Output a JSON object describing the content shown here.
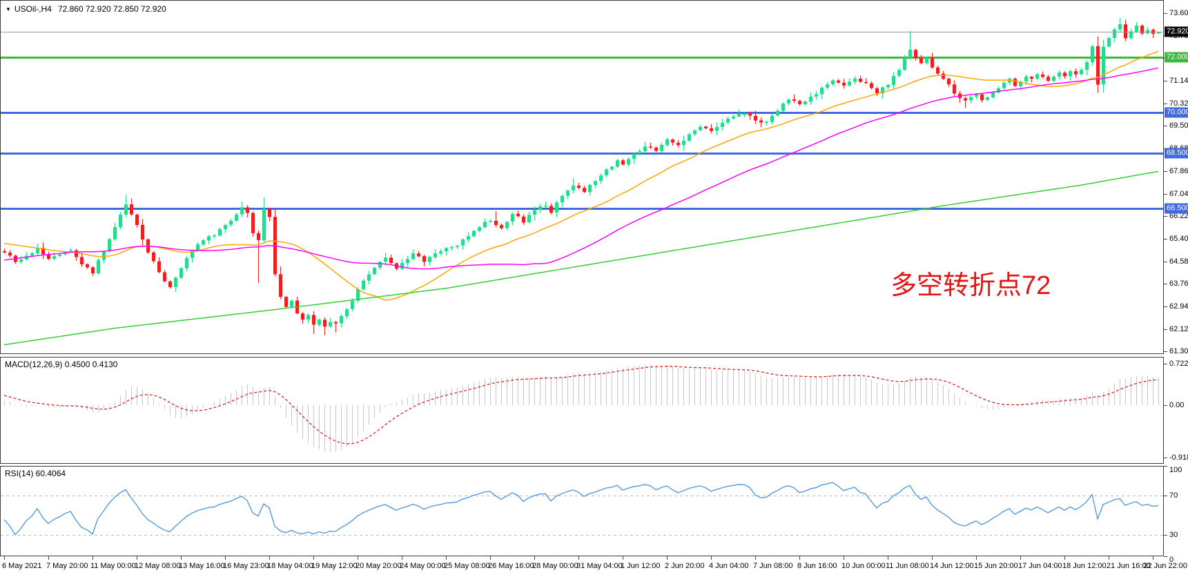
{
  "header": {
    "dropdown_icon": "▼",
    "symbol": "USOil-,H4",
    "ohlc": "72.860 72.920 72.850 72.920"
  },
  "colors": {
    "bull": "#2bd98c",
    "bear": "#f01e1e",
    "wick_bull": "#2bd98c",
    "wick_bear": "#f01e1e",
    "hline_blue": "#4169e1",
    "hline_green": "#3cb93c",
    "ma_fast": "#ffa500",
    "ma_mid": "#ff00ff",
    "ma_slow": "#33cc33",
    "current_line": "#9a9a9a",
    "current_badge_bg": "#0a0a0a",
    "macd_hist": "#c6c6c6",
    "macd_signal": "#dd2222",
    "rsi_line": "#4793e0",
    "level_dash": "#bdbdbd",
    "border": "#3c3c3c",
    "text": "#000000",
    "annotation_red": "#e41414",
    "background": "#ffffff"
  },
  "chart_data": [
    {
      "id": "price",
      "type": "candlestick",
      "symbol": "USOil-",
      "timeframe": "H4",
      "num_bars": 210,
      "bars_per_x_tick": 8,
      "y_range": [
        61.212,
        74.076
      ],
      "y_ticks": [
        {
          "label": "73.600",
          "price": 73.6
        },
        {
          "label": "72.780",
          "price": 72.78
        },
        {
          "label": "71.960",
          "price": 71.96
        },
        {
          "label": "71.140",
          "price": 71.14
        },
        {
          "label": "70.320",
          "price": 70.32
        },
        {
          "label": "69.500",
          "price": 69.5
        },
        {
          "label": "68.680",
          "price": 68.68
        },
        {
          "label": "67.860",
          "price": 67.86
        },
        {
          "label": "67.040",
          "price": 67.04
        },
        {
          "label": "66.220",
          "price": 66.22
        },
        {
          "label": "65.400",
          "price": 65.4
        },
        {
          "label": "64.580",
          "price": 64.58
        },
        {
          "label": "63.760",
          "price": 63.76
        },
        {
          "label": "62.940",
          "price": 62.94
        },
        {
          "label": "62.120",
          "price": 62.12
        },
        {
          "label": "61.300",
          "price": 61.3
        }
      ],
      "x_ticks": [
        "6 May 2021",
        "7 May 20:00",
        "11 May 00:00",
        "12 May 08:00",
        "13 May 16:00",
        "16 May 23:00",
        "18 May 04:00",
        "19 May 12:00",
        "20 May 20:00",
        "24 May 00:00",
        "25 May 08:00",
        "26 May 16:00",
        "28 May 00:00",
        "31 May 04:00",
        "1 Jun 12:00",
        "2 Jun 20:00",
        "4 Jun 04:00",
        "7 Jun 08:00",
        "8 Jun 16:00",
        "10 Jun 00:00",
        "11 Jun 08:00",
        "14 Jun 12:00",
        "15 Jun 20:00",
        "17 Jun 04:00",
        "18 Jun 12:00",
        "21 Jun 16:00",
        "22 Jun 22:00"
      ],
      "hlines": [
        {
          "label": "72.000",
          "price": 72.0,
          "color_key": "hline_green"
        },
        {
          "label": "70.000",
          "price": 70.0,
          "color_key": "hline_blue"
        },
        {
          "label": "68.500",
          "price": 68.5,
          "color_key": "hline_blue"
        },
        {
          "label": "66.500",
          "price": 66.5,
          "color_key": "hline_blue"
        }
      ],
      "current_price": {
        "label": "72.920",
        "value": 72.92
      },
      "last_bar": {
        "open": 72.86,
        "high": 72.92,
        "low": 72.85,
        "close": 72.92
      },
      "close_path": [
        [
          0,
          64.9
        ],
        [
          2,
          64.55
        ],
        [
          4,
          64.8
        ],
        [
          6,
          65.05
        ],
        [
          8,
          64.65
        ],
        [
          10,
          64.85
        ],
        [
          12,
          65.0
        ],
        [
          14,
          64.45
        ],
        [
          16,
          64.15
        ],
        [
          19,
          65.4
        ],
        [
          20,
          65.8
        ],
        [
          22,
          66.65
        ],
        [
          23,
          66.3
        ],
        [
          24,
          65.9
        ],
        [
          26,
          64.9
        ],
        [
          28,
          64.2
        ],
        [
          30,
          63.65
        ],
        [
          31,
          64.0
        ],
        [
          32,
          64.35
        ],
        [
          34,
          65.0
        ],
        [
          36,
          65.35
        ],
        [
          38,
          65.5
        ],
        [
          40,
          65.9
        ],
        [
          42,
          66.3
        ],
        [
          43,
          66.55
        ],
        [
          44,
          66.35
        ],
        [
          45,
          65.6
        ],
        [
          46,
          65.35
        ],
        [
          47,
          66.5
        ],
        [
          48,
          66.2
        ],
        [
          49,
          64.1
        ],
        [
          50,
          63.3
        ],
        [
          51,
          62.9
        ],
        [
          52,
          63.15
        ],
        [
          53,
          62.7
        ],
        [
          54,
          62.45
        ],
        [
          55,
          62.65
        ],
        [
          56,
          62.3
        ],
        [
          57,
          62.45
        ],
        [
          58,
          62.2
        ],
        [
          59,
          62.4
        ],
        [
          60,
          62.3
        ],
        [
          61,
          62.6
        ],
        [
          62,
          62.85
        ],
        [
          64,
          63.55
        ],
        [
          66,
          64.1
        ],
        [
          68,
          64.55
        ],
        [
          69,
          64.7
        ],
        [
          71,
          64.3
        ],
        [
          73,
          64.65
        ],
        [
          74,
          64.85
        ],
        [
          76,
          64.55
        ],
        [
          78,
          64.85
        ],
        [
          80,
          65.05
        ],
        [
          82,
          65.15
        ],
        [
          84,
          65.5
        ],
        [
          86,
          65.85
        ],
        [
          88,
          66.05
        ],
        [
          90,
          65.8
        ],
        [
          92,
          66.3
        ],
        [
          94,
          66.0
        ],
        [
          96,
          66.45
        ],
        [
          98,
          66.6
        ],
        [
          99,
          66.35
        ],
        [
          101,
          66.95
        ],
        [
          103,
          67.35
        ],
        [
          105,
          67.1
        ],
        [
          107,
          67.5
        ],
        [
          109,
          67.9
        ],
        [
          111,
          68.25
        ],
        [
          112,
          68.1
        ],
        [
          114,
          68.5
        ],
        [
          116,
          68.75
        ],
        [
          118,
          68.6
        ],
        [
          120,
          69.0
        ],
        [
          122,
          68.8
        ],
        [
          124,
          69.2
        ],
        [
          126,
          69.45
        ],
        [
          128,
          69.3
        ],
        [
          130,
          69.6
        ],
        [
          132,
          69.85
        ],
        [
          134,
          69.95
        ],
        [
          136,
          69.7
        ],
        [
          138,
          69.65
        ],
        [
          140,
          70.05
        ],
        [
          142,
          70.45
        ],
        [
          144,
          70.3
        ],
        [
          146,
          70.55
        ],
        [
          148,
          70.9
        ],
        [
          150,
          71.15
        ],
        [
          152,
          70.95
        ],
        [
          154,
          71.2
        ],
        [
          156,
          71.05
        ],
        [
          158,
          70.7
        ],
        [
          160,
          71.0
        ],
        [
          162,
          71.55
        ],
        [
          163,
          71.95
        ],
        [
          164,
          72.25
        ],
        [
          165,
          72.0
        ],
        [
          166,
          71.8
        ],
        [
          167,
          71.95
        ],
        [
          168,
          71.6
        ],
        [
          170,
          71.2
        ],
        [
          172,
          70.7
        ],
        [
          174,
          70.4
        ],
        [
          175,
          70.55
        ],
        [
          176,
          70.65
        ],
        [
          177,
          70.45
        ],
        [
          178,
          70.55
        ],
        [
          179,
          70.7
        ],
        [
          180,
          70.85
        ],
        [
          181,
          71.05
        ],
        [
          182,
          71.2
        ],
        [
          183,
          70.95
        ],
        [
          184,
          71.1
        ],
        [
          185,
          71.3
        ],
        [
          186,
          71.2
        ],
        [
          187,
          71.4
        ],
        [
          188,
          71.3
        ],
        [
          189,
          71.15
        ],
        [
          190,
          71.3
        ],
        [
          191,
          71.45
        ],
        [
          192,
          71.3
        ],
        [
          193,
          71.5
        ],
        [
          194,
          71.4
        ],
        [
          195,
          71.55
        ],
        [
          196,
          71.8
        ],
        [
          197,
          72.4
        ],
        [
          198,
          71.0
        ],
        [
          199,
          72.4
        ],
        [
          200,
          72.7
        ],
        [
          201,
          73.0
        ],
        [
          202,
          73.2
        ],
        [
          203,
          72.7
        ],
        [
          204,
          72.95
        ],
        [
          205,
          73.15
        ],
        [
          206,
          72.85
        ],
        [
          207,
          73.0
        ],
        [
          208,
          72.86
        ],
        [
          209,
          72.92
        ]
      ],
      "spikes": [
        {
          "bar": 22,
          "high": 67.0
        },
        {
          "bar": 43,
          "high": 66.75
        },
        {
          "bar": 46,
          "low": 63.8
        },
        {
          "bar": 47,
          "high": 66.9
        },
        {
          "bar": 56,
          "low": 61.95
        },
        {
          "bar": 58,
          "low": 61.9
        },
        {
          "bar": 60,
          "low": 62.0
        },
        {
          "bar": 89,
          "high": 66.4
        },
        {
          "bar": 103,
          "high": 67.6
        },
        {
          "bar": 134,
          "high": 70.0
        },
        {
          "bar": 164,
          "high": 72.95
        },
        {
          "bar": 174,
          "low": 70.15
        },
        {
          "bar": 198,
          "high": 72.75
        },
        {
          "bar": 198,
          "low": 70.7
        },
        {
          "bar": 202,
          "high": 73.42
        }
      ],
      "pre_history_path": [
        [
          -50,
          63.2
        ],
        [
          -15,
          65.5
        ],
        [
          -5,
          65.1
        ],
        [
          -1,
          64.95
        ]
      ],
      "moving_averages": [
        {
          "name": "ma-fast",
          "style": "sma",
          "period": 21,
          "color_key": "ma_fast"
        },
        {
          "name": "ma-mid",
          "style": "sma",
          "period": 50,
          "color_key": "ma_mid"
        },
        {
          "name": "ma-slow",
          "style": "waypoints",
          "color_key": "ma_slow",
          "waypoints": [
            [
              0,
              61.55
            ],
            [
              20,
              62.15
            ],
            [
              50,
              62.85
            ],
            [
              80,
              63.6
            ],
            [
              110,
              64.6
            ],
            [
              140,
              65.6
            ],
            [
              170,
              66.6
            ],
            [
              195,
              67.35
            ],
            [
              209,
              67.85
            ]
          ]
        }
      ],
      "annotation": {
        "text": "多空转折点72",
        "color_key": "annotation_red",
        "x": 1290,
        "y": 382,
        "font_px": 38
      }
    },
    {
      "id": "macd",
      "type": "macd_histogram",
      "label": "MACD(12,26,9) 0.4500 0.4130",
      "params": [
        12,
        26,
        9
      ],
      "macd_value": 0.45,
      "signal_value": 0.413,
      "y_range": [
        -1.024,
        0.843
      ],
      "y_ticks": [
        {
          "label": "0.7229",
          "value": 0.7229
        },
        {
          "label": "0.00",
          "value": 0.0
        },
        {
          "label": "-0.9185",
          "value": -0.9185
        }
      ]
    },
    {
      "id": "rsi",
      "type": "line",
      "label": "RSI(14) 60.4064",
      "period": 14,
      "value": 60.4064,
      "y_range": [
        8.2,
        100.2
      ],
      "levels": [
        70,
        30
      ],
      "y_ticks": [
        {
          "label": "100",
          "value": 100
        },
        {
          "label": "70",
          "value": 70
        },
        {
          "label": "30",
          "value": 30
        },
        {
          "label": "0",
          "value": 0
        }
      ]
    }
  ]
}
